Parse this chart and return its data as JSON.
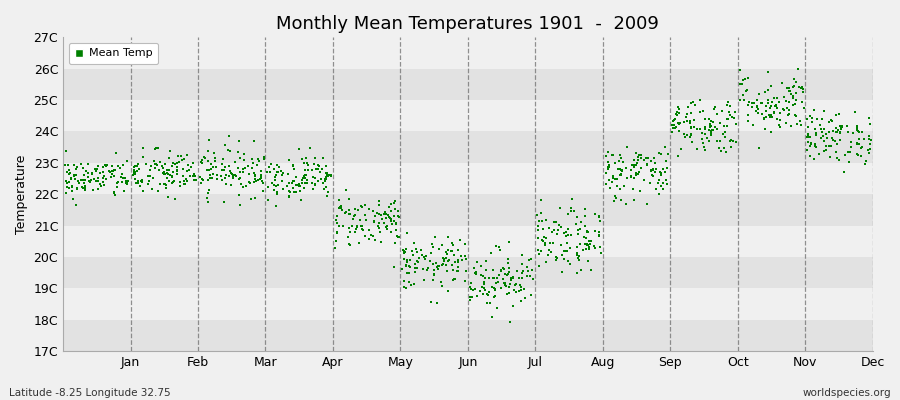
{
  "title": "Monthly Mean Temperatures 1901  -  2009",
  "ylabel": "Temperature",
  "ylim": [
    17,
    27
  ],
  "yticks": [
    17,
    18,
    19,
    20,
    21,
    22,
    23,
    24,
    25,
    26,
    27
  ],
  "ytick_labels": [
    "17C",
    "18C",
    "19C",
    "20C",
    "21C",
    "22C",
    "23C",
    "24C",
    "25C",
    "26C",
    "27C"
  ],
  "months": [
    "Jan",
    "Feb",
    "Mar",
    "Apr",
    "May",
    "Jun",
    "Jul",
    "Aug",
    "Sep",
    "Oct",
    "Nov",
    "Dec"
  ],
  "dot_color": "#008000",
  "background_color": "#f0f0f0",
  "band_light": "#f0f0f0",
  "band_dark": "#e2e2e2",
  "subtitle_left": "Latitude -8.25 Longitude 32.75",
  "subtitle_right": "worldspecies.org",
  "legend_label": "Mean Temp",
  "mean_temps": [
    22.5,
    22.65,
    22.75,
    22.55,
    21.15,
    19.75,
    19.3,
    20.5,
    22.7,
    24.2,
    24.9,
    23.8
  ],
  "std_temps": [
    0.32,
    0.38,
    0.4,
    0.35,
    0.42,
    0.42,
    0.48,
    0.52,
    0.45,
    0.45,
    0.5,
    0.42
  ],
  "n_years": 109,
  "dashed_line_color": "#666666"
}
